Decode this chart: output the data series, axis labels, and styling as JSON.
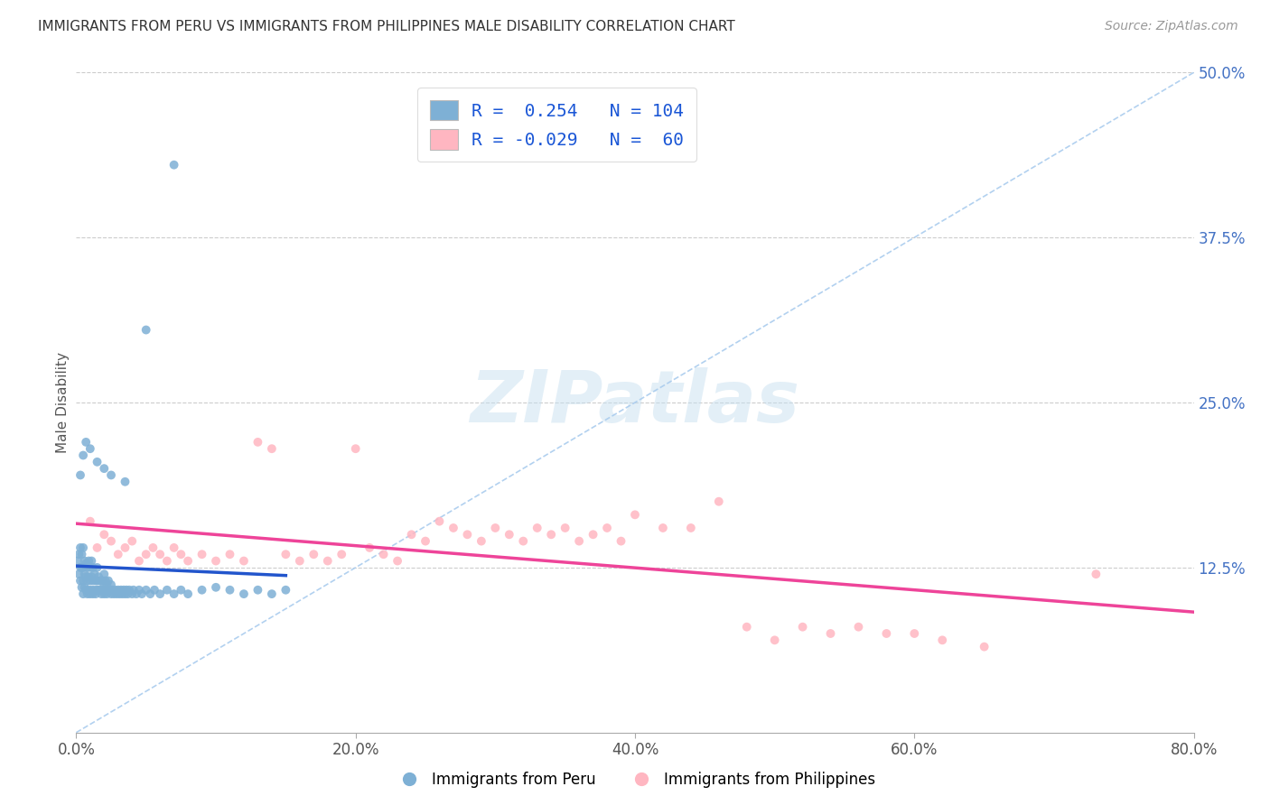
{
  "title": "IMMIGRANTS FROM PERU VS IMMIGRANTS FROM PHILIPPINES MALE DISABILITY CORRELATION CHART",
  "source": "Source: ZipAtlas.com",
  "ylabel": "Male Disability",
  "xlim": [
    0.0,
    0.8
  ],
  "ylim": [
    0.0,
    0.5
  ],
  "xtick_vals": [
    0.0,
    0.2,
    0.4,
    0.6,
    0.8
  ],
  "xtick_labels": [
    "0.0%",
    "20.0%",
    "40.0%",
    "60.0%",
    "80.0%"
  ],
  "ytick_vals": [
    0.125,
    0.25,
    0.375,
    0.5
  ],
  "ytick_labels": [
    "12.5%",
    "25.0%",
    "37.5%",
    "50.0%"
  ],
  "peru_color": "#7EB0D5",
  "phil_color": "#FFB6C1",
  "peru_R": 0.254,
  "peru_N": 104,
  "phil_R": -0.029,
  "phil_N": 60,
  "peru_trend_color": "#2255CC",
  "phil_trend_color": "#EE4499",
  "diag_line_color": "#AACCEE",
  "watermark": "ZIPatlas",
  "legend_label_peru": "Immigrants from Peru",
  "legend_label_phil": "Immigrants from Philippines",
  "peru_x": [
    0.001,
    0.002,
    0.002,
    0.003,
    0.003,
    0.003,
    0.004,
    0.004,
    0.004,
    0.005,
    0.005,
    0.005,
    0.005,
    0.006,
    0.006,
    0.006,
    0.007,
    0.007,
    0.007,
    0.008,
    0.008,
    0.008,
    0.009,
    0.009,
    0.009,
    0.01,
    0.01,
    0.01,
    0.011,
    0.011,
    0.011,
    0.012,
    0.012,
    0.012,
    0.013,
    0.013,
    0.014,
    0.014,
    0.015,
    0.015,
    0.015,
    0.016,
    0.016,
    0.017,
    0.017,
    0.018,
    0.018,
    0.019,
    0.019,
    0.02,
    0.02,
    0.02,
    0.021,
    0.021,
    0.022,
    0.022,
    0.023,
    0.023,
    0.024,
    0.025,
    0.025,
    0.026,
    0.027,
    0.028,
    0.029,
    0.03,
    0.031,
    0.032,
    0.033,
    0.034,
    0.035,
    0.036,
    0.037,
    0.038,
    0.04,
    0.041,
    0.043,
    0.045,
    0.047,
    0.05,
    0.053,
    0.056,
    0.06,
    0.065,
    0.07,
    0.075,
    0.08,
    0.09,
    0.1,
    0.11,
    0.12,
    0.13,
    0.14,
    0.15,
    0.003,
    0.005,
    0.007,
    0.01,
    0.015,
    0.02,
    0.025,
    0.035,
    0.05,
    0.07
  ],
  "peru_y": [
    0.13,
    0.12,
    0.135,
    0.115,
    0.125,
    0.14,
    0.11,
    0.125,
    0.135,
    0.105,
    0.115,
    0.125,
    0.14,
    0.11,
    0.12,
    0.13,
    0.108,
    0.118,
    0.128,
    0.105,
    0.115,
    0.125,
    0.108,
    0.118,
    0.13,
    0.105,
    0.115,
    0.125,
    0.108,
    0.118,
    0.13,
    0.105,
    0.115,
    0.125,
    0.108,
    0.12,
    0.105,
    0.115,
    0.108,
    0.115,
    0.125,
    0.108,
    0.118,
    0.108,
    0.115,
    0.105,
    0.115,
    0.108,
    0.115,
    0.105,
    0.112,
    0.12,
    0.108,
    0.115,
    0.105,
    0.112,
    0.108,
    0.115,
    0.108,
    0.105,
    0.112,
    0.108,
    0.105,
    0.108,
    0.105,
    0.108,
    0.105,
    0.108,
    0.105,
    0.108,
    0.105,
    0.108,
    0.105,
    0.108,
    0.105,
    0.108,
    0.105,
    0.108,
    0.105,
    0.108,
    0.105,
    0.108,
    0.105,
    0.108,
    0.105,
    0.108,
    0.105,
    0.108,
    0.11,
    0.108,
    0.105,
    0.108,
    0.105,
    0.108,
    0.195,
    0.21,
    0.22,
    0.215,
    0.205,
    0.2,
    0.195,
    0.19,
    0.305,
    0.43
  ],
  "phil_x": [
    0.01,
    0.015,
    0.02,
    0.025,
    0.03,
    0.035,
    0.04,
    0.045,
    0.05,
    0.055,
    0.06,
    0.065,
    0.07,
    0.075,
    0.08,
    0.09,
    0.1,
    0.11,
    0.12,
    0.13,
    0.14,
    0.15,
    0.16,
    0.17,
    0.18,
    0.19,
    0.2,
    0.21,
    0.22,
    0.23,
    0.24,
    0.25,
    0.26,
    0.27,
    0.28,
    0.29,
    0.3,
    0.31,
    0.32,
    0.33,
    0.34,
    0.35,
    0.36,
    0.37,
    0.38,
    0.39,
    0.4,
    0.42,
    0.44,
    0.46,
    0.48,
    0.5,
    0.52,
    0.54,
    0.56,
    0.58,
    0.6,
    0.62,
    0.65,
    0.73
  ],
  "phil_y": [
    0.16,
    0.14,
    0.15,
    0.145,
    0.135,
    0.14,
    0.145,
    0.13,
    0.135,
    0.14,
    0.135,
    0.13,
    0.14,
    0.135,
    0.13,
    0.135,
    0.13,
    0.135,
    0.13,
    0.22,
    0.215,
    0.135,
    0.13,
    0.135,
    0.13,
    0.135,
    0.215,
    0.14,
    0.135,
    0.13,
    0.15,
    0.145,
    0.16,
    0.155,
    0.15,
    0.145,
    0.155,
    0.15,
    0.145,
    0.155,
    0.15,
    0.155,
    0.145,
    0.15,
    0.155,
    0.145,
    0.165,
    0.155,
    0.155,
    0.175,
    0.08,
    0.07,
    0.08,
    0.075,
    0.08,
    0.075,
    0.075,
    0.07,
    0.065,
    0.12
  ]
}
